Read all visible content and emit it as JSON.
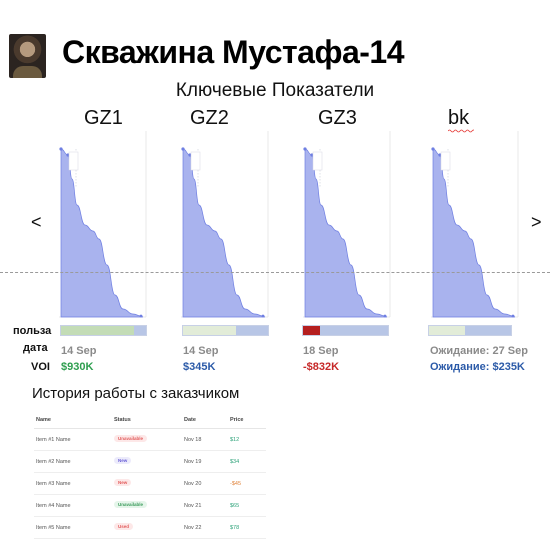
{
  "header": {
    "title": "Скважина Мустафа-14",
    "subtitle": "Ключевые Показатели"
  },
  "navigation": {
    "prev": "<",
    "next": ">"
  },
  "row_labels": {
    "benefit": "польза",
    "date": "дата",
    "voi": "VOI"
  },
  "colors": {
    "area_fill": "#a9b3ee",
    "area_stroke": "#6f7fe2",
    "bar_base": "#b8c6e6",
    "green": "#2e9e4f",
    "blue": "#2b5aa8",
    "red": "#c62828"
  },
  "panels": [
    {
      "label": "GZ1",
      "bar": {
        "fill_fraction": 0.86,
        "fill_color": "#c3dcb6"
      },
      "date": "14 Sep",
      "voi": "$930K",
      "voi_color": "#2e9e4f"
    },
    {
      "label": "GZ2",
      "bar": {
        "fill_fraction": 0.62,
        "fill_color": "#e2ecd8"
      },
      "date": "14 Sep",
      "voi": "$345K",
      "voi_color": "#2b5aa8"
    },
    {
      "label": "GZ3",
      "bar": {
        "fill_fraction": 0.2,
        "fill_color": "#b51f1f"
      },
      "date": "18 Sep",
      "voi": "-$832K",
      "voi_color": "#c62828"
    },
    {
      "label": "bk",
      "bar": {
        "fill_fraction": 0.44,
        "fill_color": "#e2ecd8"
      },
      "date": "Ожидание: 27 Sep",
      "voi": "Ожидание: $235K",
      "voi_color": "#2b5aa8"
    }
  ],
  "history": {
    "title": "История работы с заказчиком",
    "columns": [
      "Name",
      "Status",
      "Date",
      "Price"
    ],
    "rows": [
      {
        "name": "Item #1 Name",
        "status": "Unavailable",
        "status_color": "#e25b5b",
        "status_bg": "#fde8e8",
        "date": "Nov 18",
        "price": "$12",
        "price_color": "#2ea37a"
      },
      {
        "name": "Item #2 Name",
        "status": "New",
        "status_color": "#6a5fd6",
        "status_bg": "#ecebfb",
        "date": "Nov 19",
        "price": "$34",
        "price_color": "#2ea37a"
      },
      {
        "name": "Item #3 Name",
        "status": "New",
        "status_color": "#e25b5b",
        "status_bg": "#fde8e8",
        "date": "Nov 20",
        "price": "-$45",
        "price_color": "#e0843c"
      },
      {
        "name": "Item #4 Name",
        "status": "Unavailable",
        "status_color": "#3b9b5b",
        "status_bg": "#e5f5ea",
        "date": "Nov 21",
        "price": "$65",
        "price_color": "#2ea37a"
      },
      {
        "name": "Item #5 Name",
        "status": "Used",
        "status_color": "#e25b5b",
        "status_bg": "#fde8e8",
        "date": "Nov 22",
        "price": "$78",
        "price_color": "#2ea37a"
      }
    ]
  }
}
